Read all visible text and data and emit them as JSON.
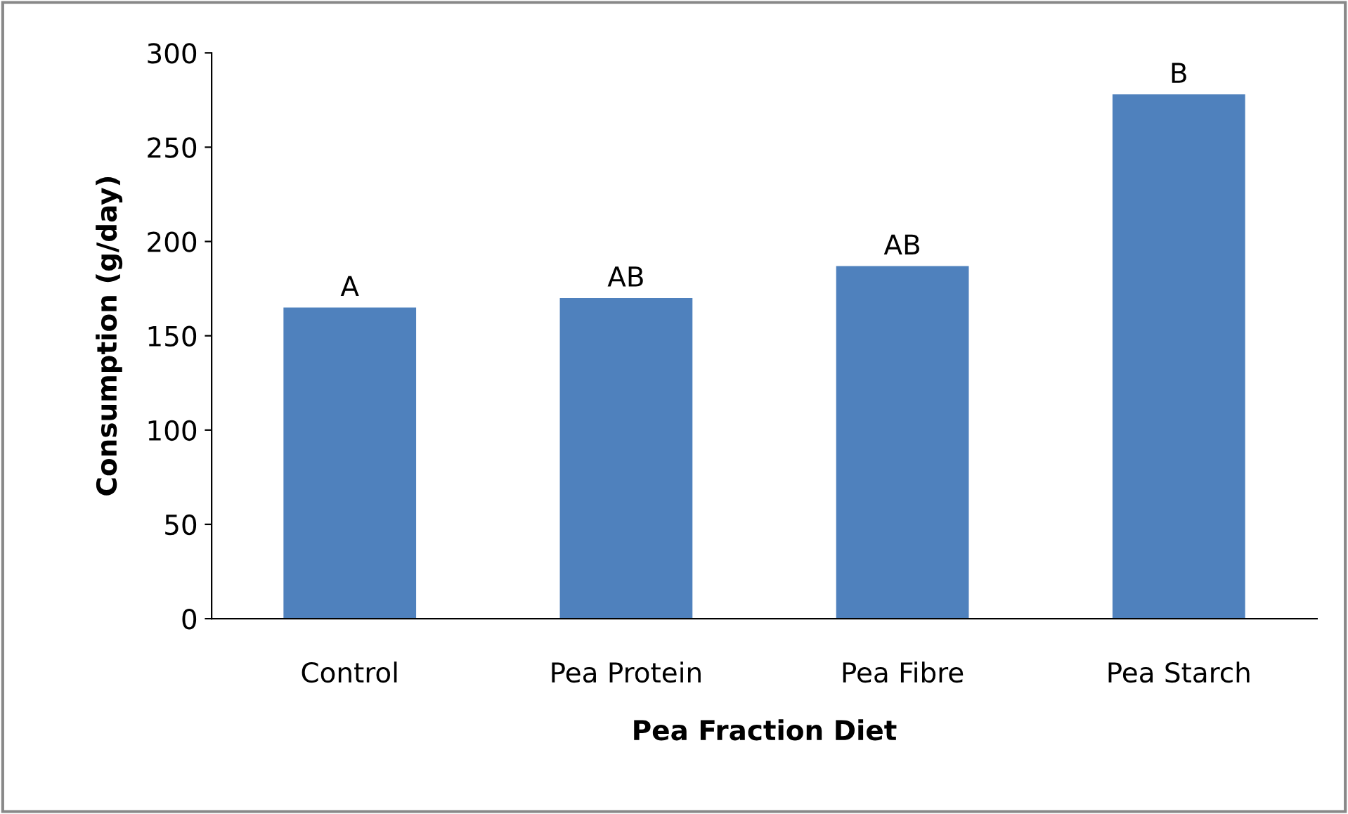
{
  "chart_data": {
    "type": "bar",
    "xlabel": "Pea Fraction Diet",
    "ylabel": "Consumption (g/day)",
    "categories": [
      "Control",
      "Pea Protein",
      "Pea Fibre",
      "Pea Starch"
    ],
    "values": [
      165,
      170,
      187,
      278
    ],
    "color": "#4f81bd",
    "ylim": [
      0,
      300
    ],
    "yticks": [
      0,
      50,
      100,
      150,
      200,
      250,
      300
    ],
    "grid": false,
    "annotations": [
      {
        "text": "A",
        "x": "Control",
        "y": 165
      },
      {
        "text": "AB",
        "x": "Pea Protein",
        "y": 170
      },
      {
        "text": "AB",
        "x": "Pea Fibre",
        "y": 187
      },
      {
        "text": "B",
        "x": "Pea Starch",
        "y": 278
      }
    ]
  }
}
